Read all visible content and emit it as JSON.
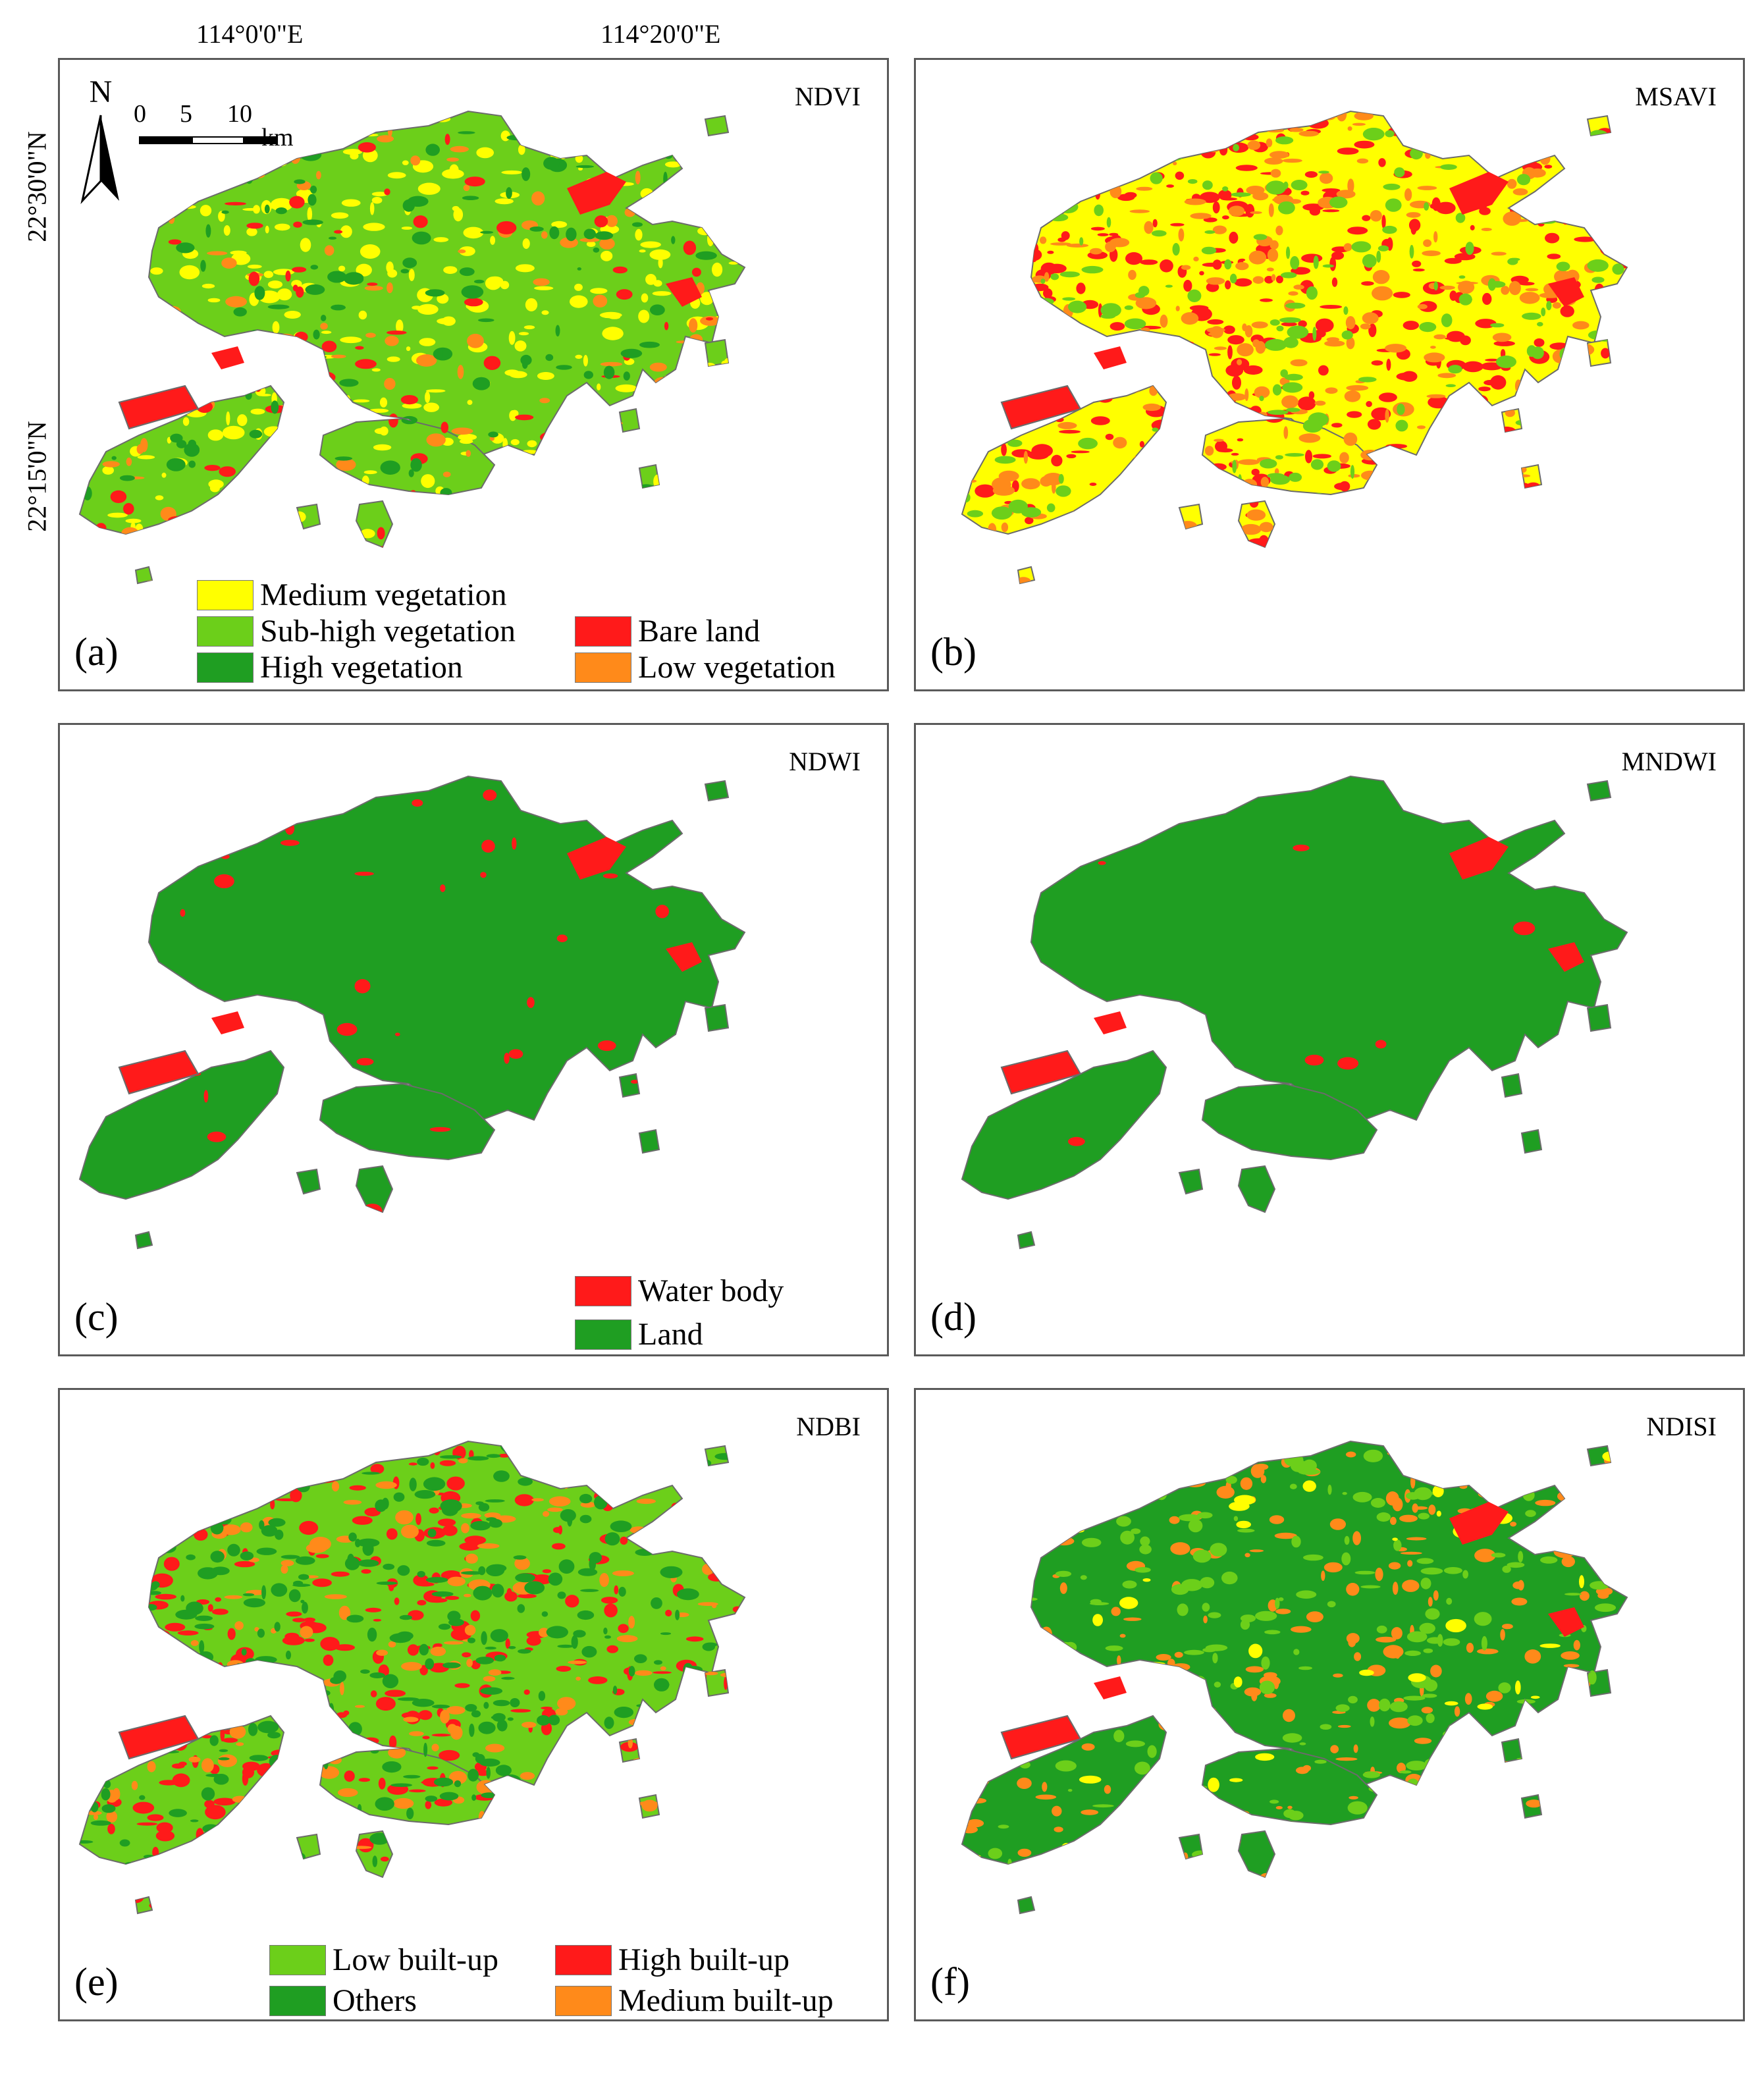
{
  "graticule": {
    "longitudes": [
      "114°0'0\"E",
      "114°20'0\"E"
    ],
    "latitudes": [
      "22°30'0\"N",
      "22°15'0\"N"
    ]
  },
  "north_arrow": {
    "label": "N"
  },
  "scale_bar": {
    "ticks": [
      "0",
      "5",
      "10"
    ],
    "unit": "km"
  },
  "colors": {
    "yellow": "#ffff00",
    "light_green": "#6ccf1a",
    "green": "#1f9e22",
    "red": "#ff1a1a",
    "orange": "#ff8a1a",
    "boundary": "#6b6b6b"
  },
  "panels": [
    {
      "id": "a",
      "letter": "(a)",
      "index": "NDVI",
      "scheme": "ndvi"
    },
    {
      "id": "b",
      "letter": "(b)",
      "index": "MSAVI",
      "scheme": "msavi"
    },
    {
      "id": "c",
      "letter": "(c)",
      "index": "NDWI",
      "scheme": "ndwi"
    },
    {
      "id": "d",
      "letter": "(d)",
      "index": "MNDWI",
      "scheme": "mndwi"
    },
    {
      "id": "e",
      "letter": "(e)",
      "index": "NDBI",
      "scheme": "ndbi"
    },
    {
      "id": "f",
      "letter": "(f)",
      "index": "NDISI",
      "scheme": "ndisi"
    }
  ],
  "legends": {
    "vegetation": {
      "medium": "Medium vegetation",
      "sub_high": "Sub-high vegetation",
      "high": "High vegetation",
      "bare": "Bare land",
      "low": "Low vegetation"
    },
    "water": {
      "water": "Water body",
      "land": "Land"
    },
    "builtup": {
      "low": "Low built-up",
      "others": "Others",
      "high": "High built-up",
      "medium": "Medium built-up"
    }
  }
}
